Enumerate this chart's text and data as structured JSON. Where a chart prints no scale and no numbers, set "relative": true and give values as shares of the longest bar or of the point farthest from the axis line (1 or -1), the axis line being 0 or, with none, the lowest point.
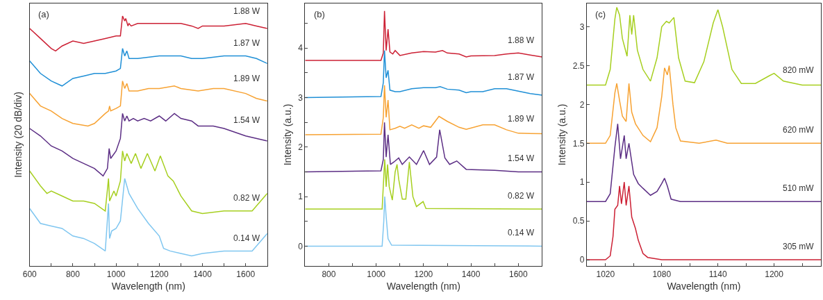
{
  "chart_data": [
    {
      "type": "line",
      "title": "(a)",
      "xlabel": "Wavelength (nm)",
      "ylabel": "Intensity (20 dB/div)",
      "relative": true,
      "xlim": [
        600,
        1700
      ],
      "xticks": [
        600,
        {
          "value": 700,
          "label": null
        },
        800,
        {
          "value": 900,
          "label": null
        },
        1000,
        {
          "value": 1100,
          "label": null
        },
        1200,
        {
          "value": 1300,
          "label": null
        },
        1400,
        {
          "value": 1500,
          "label": null
        },
        1600
      ],
      "series": [
        {
          "name": "1.88 W",
          "color": "#cc2034",
          "x": [
            600,
            650,
            700,
            720,
            750,
            800,
            850,
            900,
            950,
            1000,
            1020,
            1025,
            1030,
            1040,
            1045,
            1055,
            1060,
            1070,
            1100,
            1200,
            1300,
            1350,
            1380,
            1400,
            1500,
            1600,
            1650,
            1700
          ],
          "values": [
            0.95,
            0.91,
            0.87,
            0.86,
            0.88,
            0.9,
            0.89,
            0.9,
            0.91,
            0.92,
            0.92,
            0.96,
            1.0,
            0.98,
            0.99,
            0.96,
            0.97,
            0.96,
            0.97,
            0.97,
            0.97,
            0.96,
            0.95,
            0.96,
            0.96,
            0.97,
            0.96,
            0.95
          ]
        },
        {
          "name": "1.87 W",
          "color": "#1f8fd6",
          "x": [
            600,
            650,
            700,
            750,
            800,
            850,
            900,
            950,
            1000,
            1020,
            1025,
            1030,
            1040,
            1050,
            1060,
            1100,
            1200,
            1300,
            1350,
            1400,
            1500,
            1600,
            1650,
            1700
          ],
          "values": [
            0.82,
            0.77,
            0.74,
            0.72,
            0.75,
            0.76,
            0.77,
            0.77,
            0.78,
            0.79,
            0.83,
            0.87,
            0.84,
            0.86,
            0.83,
            0.83,
            0.84,
            0.84,
            0.83,
            0.83,
            0.84,
            0.84,
            0.83,
            0.81
          ]
        },
        {
          "name": "1.89 W",
          "color": "#f7a232",
          "x": [
            600,
            650,
            700,
            750,
            800,
            870,
            900,
            950,
            965,
            970,
            975,
            1000,
            1020,
            1030,
            1040,
            1050,
            1060,
            1100,
            1150,
            1200,
            1270,
            1300,
            1380,
            1450,
            1500,
            1600,
            1650,
            1700
          ],
          "values": [
            0.69,
            0.64,
            0.62,
            0.59,
            0.57,
            0.56,
            0.57,
            0.61,
            0.62,
            0.64,
            0.62,
            0.63,
            0.64,
            0.74,
            0.71,
            0.73,
            0.7,
            0.7,
            0.71,
            0.71,
            0.72,
            0.71,
            0.7,
            0.71,
            0.71,
            0.69,
            0.67,
            0.66
          ]
        },
        {
          "name": "1.54 W",
          "color": "#5b2d84",
          "x": [
            600,
            650,
            700,
            750,
            800,
            850,
            900,
            940,
            960,
            968,
            975,
            1000,
            1020,
            1030,
            1040,
            1050,
            1060,
            1080,
            1100,
            1130,
            1160,
            1200,
            1230,
            1270,
            1300,
            1350,
            1380,
            1450,
            1500,
            1600,
            1700
          ],
          "values": [
            0.55,
            0.52,
            0.48,
            0.46,
            0.43,
            0.41,
            0.39,
            0.36,
            0.39,
            0.47,
            0.43,
            0.46,
            0.51,
            0.61,
            0.58,
            0.6,
            0.58,
            0.59,
            0.58,
            0.59,
            0.58,
            0.6,
            0.58,
            0.61,
            0.59,
            0.58,
            0.56,
            0.56,
            0.55,
            0.52,
            0.5
          ]
        },
        {
          "name": "0.82 W",
          "color": "#a6cf1f",
          "x": [
            600,
            650,
            680,
            700,
            750,
            800,
            850,
            900,
            950,
            965,
            970,
            990,
            1000,
            1020,
            1030,
            1040,
            1050,
            1070,
            1090,
            1115,
            1145,
            1180,
            1205,
            1240,
            1265,
            1300,
            1350,
            1400,
            1500,
            1600,
            1630,
            1700
          ],
          "values": [
            0.38,
            0.32,
            0.29,
            0.3,
            0.28,
            0.26,
            0.26,
            0.25,
            0.22,
            0.35,
            0.26,
            0.3,
            0.28,
            0.34,
            0.46,
            0.42,
            0.45,
            0.41,
            0.45,
            0.39,
            0.45,
            0.38,
            0.44,
            0.36,
            0.34,
            0.28,
            0.22,
            0.21,
            0.22,
            0.22,
            0.22,
            0.29
          ]
        },
        {
          "name": "0.14 W",
          "color": "#7fc6f0",
          "x": [
            600,
            650,
            700,
            750,
            800,
            850,
            900,
            950,
            965,
            970,
            980,
            1000,
            1020,
            1040,
            1060,
            1100,
            1150,
            1200,
            1220,
            1250,
            1300,
            1350,
            1400,
            1500,
            1600,
            1630,
            1700
          ],
          "values": [
            0.23,
            0.17,
            0.16,
            0.15,
            0.12,
            0.11,
            0.09,
            0.06,
            0.25,
            0.11,
            0.14,
            0.15,
            0.18,
            0.35,
            0.29,
            0.23,
            0.17,
            0.12,
            0.07,
            0.06,
            0.05,
            0.04,
            0.05,
            0.06,
            0.06,
            0.06,
            0.13
          ]
        }
      ]
    },
    {
      "type": "line",
      "title": "(b)",
      "xlabel": "Wavelength (nm)",
      "ylabel": "Intensity (a.u.)",
      "xlim": [
        700,
        1700
      ],
      "xticks": [
        800,
        {
          "value": 900,
          "label": null
        },
        1000,
        {
          "value": 1100,
          "label": null
        },
        1200,
        {
          "value": 1300,
          "label": null
        },
        1400,
        {
          "value": 1500,
          "label": null
        },
        1600
      ],
      "ylim": [
        -0.4,
        4.9
      ],
      "yticks": [
        0,
        {
          "value": 0.5,
          "label": null
        },
        1,
        {
          "value": 1.5,
          "label": null
        },
        2,
        {
          "value": 2.5,
          "label": null
        },
        3,
        {
          "value": 3.5,
          "label": null
        },
        4,
        {
          "value": 4.5,
          "label": null
        }
      ],
      "series": [
        {
          "name": "1.88 W",
          "color": "#cc2034",
          "x": [
            700,
            1020,
            1030,
            1035,
            1042,
            1050,
            1058,
            1070,
            1080,
            1100,
            1150,
            1200,
            1250,
            1280,
            1300,
            1350,
            1380,
            1400,
            1500,
            1550,
            1600,
            1650,
            1700
          ],
          "values": [
            3.75,
            3.75,
            3.9,
            4.75,
            3.95,
            4.38,
            3.92,
            3.88,
            3.95,
            3.85,
            3.9,
            3.93,
            3.92,
            3.95,
            3.9,
            3.88,
            3.82,
            3.84,
            3.85,
            3.88,
            3.9,
            3.86,
            3.82
          ]
        },
        {
          "name": "1.87 W",
          "color": "#1f8fd6",
          "x": [
            700,
            1020,
            1030,
            1035,
            1042,
            1050,
            1058,
            1080,
            1100,
            1150,
            1200,
            1250,
            1270,
            1300,
            1350,
            1380,
            1400,
            1450,
            1500,
            1550,
            1600,
            1650,
            1700
          ],
          "values": [
            3.0,
            3.02,
            3.3,
            3.95,
            3.4,
            3.55,
            3.15,
            3.12,
            3.12,
            3.18,
            3.2,
            3.2,
            3.22,
            3.17,
            3.15,
            3.1,
            3.12,
            3.12,
            3.18,
            3.18,
            3.13,
            3.08,
            3.05
          ]
        },
        {
          "name": "1.89 W",
          "color": "#f7a232",
          "x": [
            700,
            1020,
            1030,
            1035,
            1042,
            1050,
            1058,
            1080,
            1100,
            1120,
            1150,
            1180,
            1200,
            1230,
            1265,
            1300,
            1350,
            1380,
            1450,
            1500,
            1550,
            1600,
            1700
          ],
          "values": [
            2.25,
            2.26,
            2.6,
            3.25,
            2.6,
            2.95,
            2.35,
            2.38,
            2.42,
            2.38,
            2.45,
            2.38,
            2.43,
            2.4,
            2.62,
            2.52,
            2.4,
            2.36,
            2.45,
            2.45,
            2.35,
            2.28,
            2.27
          ]
        },
        {
          "name": "1.54 W",
          "color": "#5b2d84",
          "x": [
            700,
            1020,
            1030,
            1035,
            1042,
            1050,
            1060,
            1075,
            1095,
            1110,
            1140,
            1170,
            1200,
            1225,
            1255,
            1268,
            1290,
            1310,
            1340,
            1380,
            1500,
            1600,
            1700
          ],
          "values": [
            1.5,
            1.52,
            1.75,
            2.5,
            1.8,
            2.25,
            1.65,
            1.7,
            1.78,
            1.65,
            1.8,
            1.65,
            1.93,
            1.65,
            1.8,
            2.35,
            1.78,
            1.65,
            1.72,
            1.55,
            1.53,
            1.5,
            1.5
          ]
        },
        {
          "name": "0.82 W",
          "color": "#a6cf1f",
          "x": [
            700,
            1025,
            1032,
            1036,
            1042,
            1048,
            1055,
            1068,
            1080,
            1088,
            1095,
            1110,
            1125,
            1140,
            1155,
            1170,
            1198,
            1210,
            1700
          ],
          "values": [
            0.75,
            0.75,
            1.4,
            1.75,
            1.2,
            1.65,
            1.2,
            0.93,
            1.5,
            1.65,
            1.35,
            0.95,
            0.95,
            1.7,
            1.0,
            0.8,
            0.9,
            0.76,
            0.75
          ]
        },
        {
          "name": "0.14 W",
          "color": "#7fc6f0",
          "x": [
            700,
            1025,
            1032,
            1036,
            1042,
            1050,
            1065,
            1700
          ],
          "values": [
            0,
            0,
            0.5,
            1.0,
            0.6,
            0.15,
            0.02,
            0
          ]
        }
      ]
    },
    {
      "type": "line",
      "title": "(c)",
      "xlabel": "Wavelength (nm)",
      "ylabel": "Intensity (a.u.)",
      "xlim": [
        1000,
        1250
      ],
      "xticks": [
        1020,
        {
          "value": 1050,
          "label": null
        },
        1080,
        {
          "value": 1110,
          "label": null
        },
        1140,
        {
          "value": 1170,
          "label": null
        },
        1200,
        {
          "value": 1230,
          "label": null
        }
      ],
      "ylim": [
        -0.08,
        3.3
      ],
      "yticks": [
        0,
        0.5,
        1,
        1.5,
        2,
        2.5,
        3
      ],
      "series": [
        {
          "name": "820 mW",
          "color": "#a6cf1f",
          "x": [
            1000,
            1020,
            1025,
            1030,
            1032,
            1035,
            1038,
            1043,
            1046,
            1048,
            1050,
            1054,
            1060,
            1068,
            1075,
            1080,
            1085,
            1088,
            1093,
            1098,
            1105,
            1115,
            1125,
            1135,
            1140,
            1145,
            1155,
            1165,
            1180,
            1195,
            1200,
            1210,
            1230,
            1250
          ],
          "values": [
            2.25,
            2.25,
            2.45,
            3.1,
            3.25,
            3.15,
            2.85,
            2.62,
            3.15,
            2.9,
            3.15,
            2.7,
            2.45,
            2.3,
            2.6,
            3.0,
            3.07,
            3.05,
            3.12,
            2.6,
            2.3,
            2.28,
            2.55,
            3.05,
            3.22,
            3.0,
            2.45,
            2.27,
            2.27,
            2.37,
            2.4,
            2.3,
            2.25,
            2.25
          ]
        },
        {
          "name": "620 mW",
          "color": "#f7a232",
          "x": [
            1000,
            1020,
            1025,
            1030,
            1032,
            1035,
            1038,
            1042,
            1045,
            1048,
            1052,
            1060,
            1068,
            1075,
            1080,
            1083,
            1086,
            1088,
            1092,
            1095,
            1100,
            1120,
            1138,
            1150,
            1250
          ],
          "values": [
            1.5,
            1.5,
            1.6,
            2.15,
            2.27,
            2.05,
            1.85,
            1.78,
            2.27,
            1.9,
            1.75,
            1.6,
            1.52,
            1.7,
            2.1,
            2.47,
            2.38,
            2.5,
            2.0,
            1.7,
            1.53,
            1.5,
            1.54,
            1.5,
            1.5
          ]
        },
        {
          "name": "510 mW",
          "color": "#5b2d84",
          "x": [
            1000,
            1020,
            1025,
            1030,
            1033,
            1036,
            1040,
            1042,
            1045,
            1050,
            1055,
            1060,
            1068,
            1075,
            1080,
            1083,
            1086,
            1090,
            1100,
            1250
          ],
          "values": [
            0.75,
            0.75,
            0.85,
            1.45,
            1.75,
            1.3,
            1.6,
            1.3,
            1.5,
            1.1,
            0.98,
            0.92,
            0.83,
            0.88,
            0.98,
            1.05,
            0.95,
            0.78,
            0.75,
            0.75
          ]
        },
        {
          "name": "305 mW",
          "color": "#cc2034",
          "x": [
            1000,
            1020,
            1025,
            1028,
            1030,
            1033,
            1035,
            1037,
            1040,
            1042,
            1045,
            1048,
            1052,
            1055,
            1060,
            1065,
            1080,
            1250
          ],
          "values": [
            0,
            0,
            0.05,
            0.3,
            0.65,
            0.7,
            0.95,
            0.72,
            1.0,
            0.7,
            0.95,
            0.55,
            0.4,
            0.25,
            0.08,
            0.03,
            0,
            0
          ]
        }
      ]
    }
  ]
}
